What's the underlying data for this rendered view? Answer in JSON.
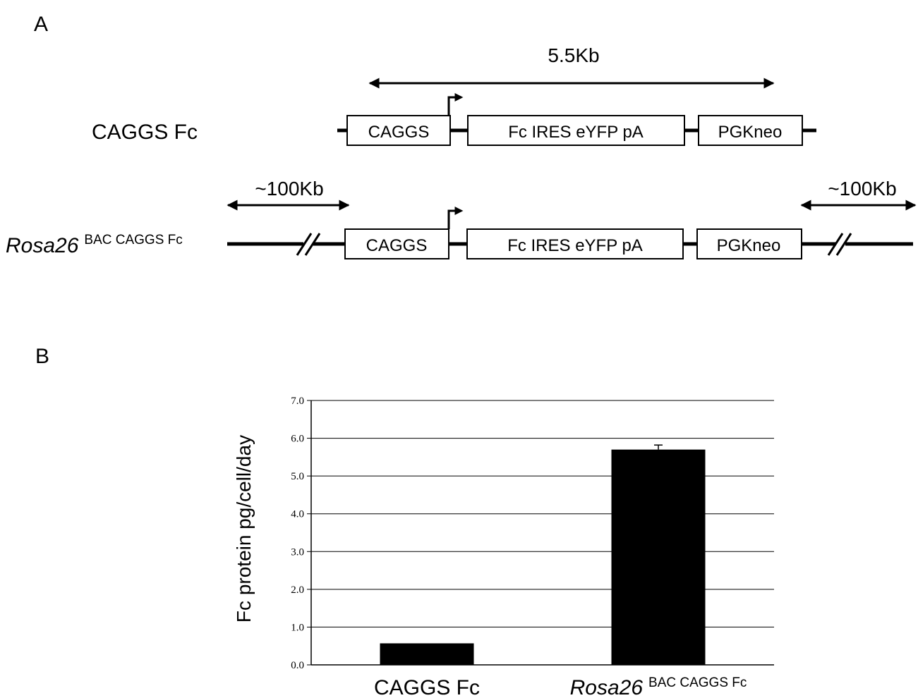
{
  "panel_a": {
    "label": "A",
    "span_label": "5.5Kb",
    "row1": {
      "name": "CAGGS Fc",
      "boxes": [
        "CAGGS",
        "Fc IRES eYFP pA",
        "PGKneo"
      ]
    },
    "row2": {
      "name_italic": "Rosa26",
      "name_sup": "BAC CAGGS Fc",
      "left_span": "~100Kb",
      "right_span": "~100Kb",
      "boxes": [
        "CAGGS",
        "Fc IRES eYFP pA",
        "PGKneo"
      ]
    }
  },
  "panel_b": {
    "label": "B"
  },
  "chart_data": {
    "type": "bar",
    "categories": [
      "CAGGS Fc",
      "Rosa26 BAC CAGGS Fc"
    ],
    "category_labels": [
      {
        "main": "CAGGS Fc",
        "sup": ""
      },
      {
        "main": "Rosa26",
        "sup": "BAC  CAGGS Fc"
      }
    ],
    "values": [
      0.57,
      5.7
    ],
    "errors": [
      0.0,
      0.12
    ],
    "ylabel": "Fc protein pg/cell/day",
    "xlabel": "",
    "ylim": [
      0,
      7
    ],
    "yticks": [
      "0.0",
      "1.0",
      "2.0",
      "3.0",
      "4.0",
      "5.0",
      "6.0",
      "7.0"
    ],
    "grid": true,
    "bar_color": "#000000"
  }
}
